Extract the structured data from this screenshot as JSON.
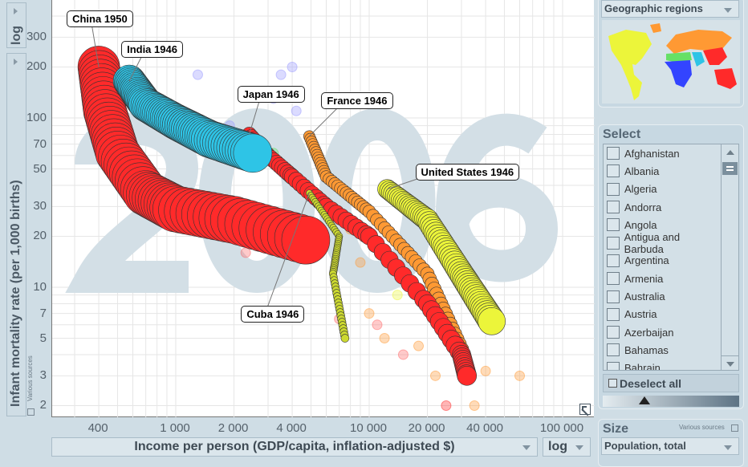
{
  "y_axis": {
    "scale": "log",
    "label": "Infant mortality rate (per 1,000 births)",
    "source": "Various sources"
  },
  "x_axis": {
    "scale": "log",
    "label": "Income per person (GDP/capita, inflation-adjusted $)"
  },
  "color_panel": {
    "selected": "Geographic regions"
  },
  "select_panel": {
    "title": "Select",
    "countries": [
      "Afghanistan",
      "Albania",
      "Algeria",
      "Andorra",
      "Angola",
      "Antigua and Barbuda",
      "Argentina",
      "Armenia",
      "Australia",
      "Austria",
      "Azerbaijan",
      "Bahamas",
      "Bahrain"
    ],
    "deselect_label": "Deselect all"
  },
  "size_panel": {
    "title": "Size",
    "source": "Various sources",
    "selected": "Population, total"
  },
  "chart_data": {
    "type": "scatter",
    "year_watermark": "2006",
    "xlabel": "Income per person (GDP/capita, inflation-adjusted $)",
    "ylabel": "Infant mortality rate (per 1,000 births)",
    "xlim": [
      300,
      120000
    ],
    "ylim": [
      1.8,
      420
    ],
    "x_ticks": [
      400,
      1000,
      2000,
      4000,
      10000,
      20000,
      40000,
      100000
    ],
    "x_tick_labels": [
      "400",
      "1 000",
      "2 000",
      "4 000",
      "10 000",
      "20 000",
      "40 000",
      "100 000"
    ],
    "y_ticks": [
      2,
      3,
      5,
      7,
      10,
      20,
      30,
      50,
      70,
      100,
      200,
      300
    ],
    "y_tick_labels": [
      "2",
      "3",
      "5",
      "7",
      "10",
      "20",
      "30",
      "50",
      "70",
      "100",
      "200",
      "300"
    ],
    "colors": {
      "east_asia_pacific": "#ff2a2a",
      "south_asia": "#2ec4e6",
      "europe_central_asia": "#ff9933",
      "america": "#ecf53a",
      "sub_saharan_africa": "#3344ff",
      "middle_east_north_africa": "#66e066"
    },
    "trails": [
      {
        "name": "China",
        "label": "China 1950",
        "color": "#ff2a2a",
        "size": [
          26,
          30
        ],
        "points": [
          [
            400,
            200
          ],
          [
            430,
            110
          ],
          [
            500,
            62
          ],
          [
            700,
            36
          ],
          [
            1000,
            29
          ],
          [
            2000,
            25
          ],
          [
            4700,
            19
          ]
        ]
      },
      {
        "name": "India",
        "label": "India 1946",
        "color": "#2ec4e6",
        "size": [
          20,
          24
        ],
        "points": [
          [
            575,
            165
          ],
          [
            700,
            120
          ],
          [
            1000,
            95
          ],
          [
            1500,
            75
          ],
          [
            2500,
            62
          ]
        ]
      },
      {
        "name": "Japan",
        "label": "Japan 1946",
        "color": "#ff2a2a",
        "size": [
          9,
          12
        ],
        "points": [
          [
            2400,
            80
          ],
          [
            3000,
            60
          ],
          [
            4000,
            45
          ],
          [
            6000,
            30
          ],
          [
            10000,
            20
          ],
          [
            20000,
            8
          ],
          [
            30000,
            4
          ],
          [
            32000,
            3
          ]
        ]
      },
      {
        "name": "France",
        "label": "France 1946",
        "color": "#ff9933",
        "size": [
          7,
          9
        ],
        "points": [
          [
            4900,
            78
          ],
          [
            6000,
            45
          ],
          [
            10000,
            28
          ],
          [
            20000,
            12
          ],
          [
            30000,
            4.3
          ]
        ]
      },
      {
        "name": "United States",
        "label": "United States 1946",
        "color": "#ecf53a",
        "size": [
          12,
          17
        ],
        "points": [
          [
            12400,
            38
          ],
          [
            20000,
            25
          ],
          [
            30000,
            12
          ],
          [
            43000,
            6.3
          ]
        ]
      },
      {
        "name": "Cuba",
        "label": "Cuba 1946",
        "color": "#ccd930",
        "size": [
          4,
          5
        ],
        "points": [
          [
            4900,
            36
          ],
          [
            7000,
            20
          ],
          [
            6500,
            12
          ],
          [
            7500,
            5
          ]
        ]
      }
    ],
    "others": [
      [
        420,
        130,
        "#9999ff"
      ],
      [
        750,
        140,
        "#9999ff"
      ],
      [
        1900,
        90,
        "#9999ff"
      ],
      [
        4000,
        200,
        "#9999ff"
      ],
      [
        4200,
        110,
        "#9999ff"
      ],
      [
        3200,
        130,
        "#9999ff"
      ],
      [
        2300,
        16,
        "#ff6666"
      ],
      [
        3200,
        62,
        "#66e066"
      ],
      [
        4500,
        25,
        "#66e066"
      ],
      [
        8000,
        22,
        "#ff9933"
      ],
      [
        9000,
        14,
        "#ff9933"
      ],
      [
        7000,
        6.5,
        "#ff6666"
      ],
      [
        10000,
        7,
        "#ff9933"
      ],
      [
        12000,
        5,
        "#ff9933"
      ],
      [
        14000,
        9,
        "#ecf53a"
      ],
      [
        22000,
        3,
        "#ff9933"
      ],
      [
        25000,
        2,
        "#ff2a2a"
      ],
      [
        35000,
        2,
        "#ff9933"
      ],
      [
        60000,
        3,
        "#ff9933"
      ],
      [
        18000,
        4.5,
        "#ff9933"
      ],
      [
        40000,
        3.2,
        "#ff9933"
      ],
      [
        11000,
        6,
        "#ff6666"
      ],
      [
        15000,
        4,
        "#ff6666"
      ],
      [
        3500,
        180,
        "#9999ff"
      ],
      [
        1300,
        180,
        "#9999ff"
      ]
    ]
  }
}
